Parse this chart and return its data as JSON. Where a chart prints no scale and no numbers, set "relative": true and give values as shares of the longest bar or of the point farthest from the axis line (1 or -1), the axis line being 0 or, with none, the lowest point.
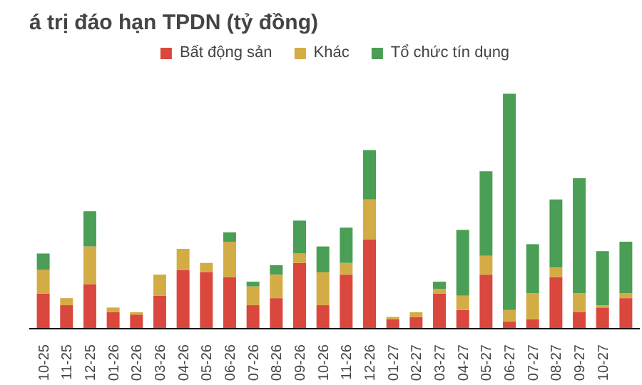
{
  "chart_data": {
    "type": "bar",
    "title": "á trị đáo hạn TPDN (tỷ đồng)",
    "stacked": true,
    "relative": true,
    "legend": "top",
    "grid": false,
    "categories": [
      "10-25",
      "11-25",
      "12-25",
      "01-26",
      "02-26",
      "03-26",
      "04-26",
      "05-26",
      "06-26",
      "07-26",
      "08-26",
      "09-26",
      "10-26",
      "11-26",
      "12-26",
      "01-27",
      "02-27",
      "03-27",
      "04-27",
      "05-27",
      "06-27",
      "07-27",
      "08-27",
      "09-27",
      "10-27",
      null
    ],
    "series": [
      {
        "name": "Bất động sản",
        "color": "#d9473d",
        "values": [
          0.15,
          0.1,
          0.19,
          0.07,
          0.06,
          0.14,
          0.25,
          0.24,
          0.22,
          0.1,
          0.13,
          0.28,
          0.1,
          0.23,
          0.38,
          0.04,
          0.05,
          0.15,
          0.08,
          0.23,
          0.03,
          0.04,
          0.22,
          0.07,
          0.09,
          0.13
        ]
      },
      {
        "name": "Khác",
        "color": "#d4ac45",
        "values": [
          0.1,
          0.03,
          0.16,
          0.02,
          0.01,
          0.09,
          0.09,
          0.04,
          0.15,
          0.08,
          0.1,
          0.04,
          0.14,
          0.05,
          0.17,
          0.01,
          0.02,
          0.02,
          0.06,
          0.08,
          0.05,
          0.11,
          0.04,
          0.08,
          0.01,
          0.02
        ]
      },
      {
        "name": "Tổ chức tín dụng",
        "color": "#4a9e55",
        "values": [
          0.07,
          0,
          0.15,
          0,
          0,
          0,
          0,
          0,
          0.04,
          0.02,
          0.04,
          0.14,
          0.11,
          0.15,
          0.21,
          0,
          0,
          0.03,
          0.28,
          0.36,
          0.92,
          0.21,
          0.29,
          0.49,
          0.23,
          0.22
        ]
      }
    ]
  }
}
